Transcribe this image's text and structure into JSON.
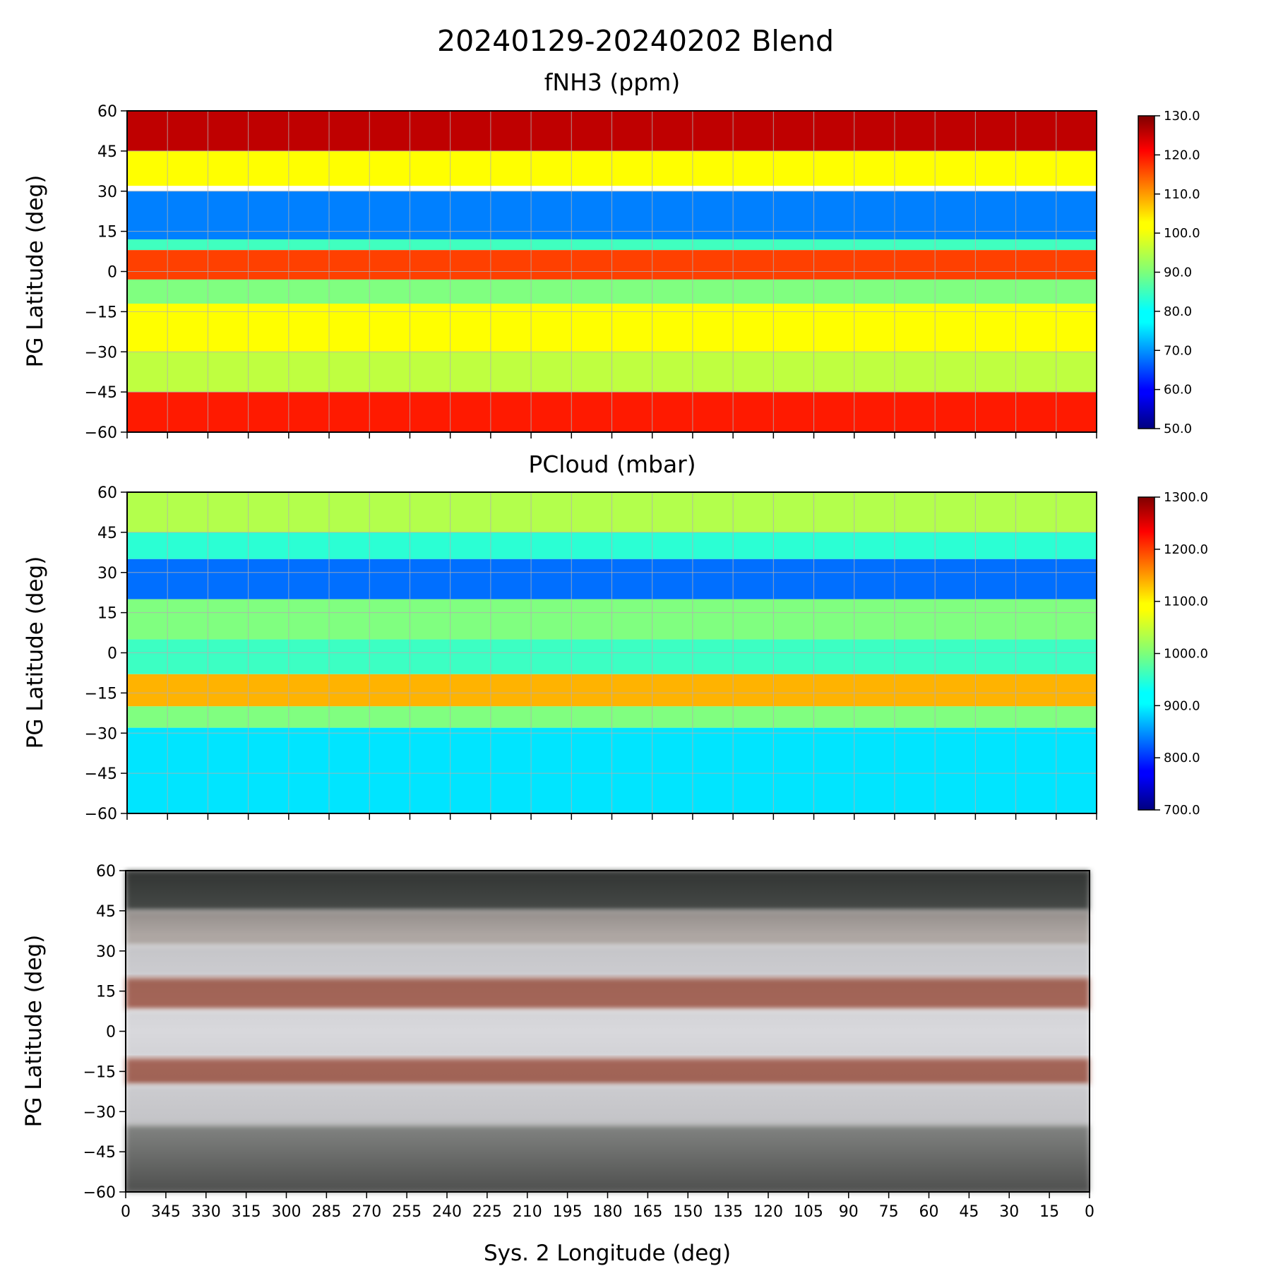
{
  "figure": {
    "suptitle": "20240129-20240202 Blend",
    "xlabel": "Sys. 2 Longitude (deg)"
  },
  "chart_data": [
    {
      "type": "heatmap",
      "title": "fNH3 (ppm)",
      "ylabel": "PG Latitude (deg)",
      "yticks": [
        60,
        45,
        30,
        15,
        0,
        -15,
        -30,
        -45,
        -60
      ],
      "ylim": [
        -60,
        60
      ],
      "xlim": [
        360,
        0
      ],
      "x_grid_every": 15,
      "grid": true,
      "colormap": "jet",
      "colorbar": {
        "range": [
          50,
          130
        ],
        "ticks": [
          "130.0",
          "120.0",
          "110.0",
          "100.0",
          "90.0",
          "80.0",
          "70.0",
          "60.0",
          "50.0"
        ]
      },
      "bands": [
        {
          "lat": [
            45,
            60
          ],
          "value": 125
        },
        {
          "lat": [
            32,
            45
          ],
          "value": 100
        },
        {
          "lat": [
            12,
            30
          ],
          "value": 70
        },
        {
          "lat": [
            8,
            12
          ],
          "value": 85
        },
        {
          "lat": [
            -3,
            8
          ],
          "value": 115
        },
        {
          "lat": [
            -12,
            -3
          ],
          "value": 90
        },
        {
          "lat": [
            -30,
            -12
          ],
          "value": 100
        },
        {
          "lat": [
            -45,
            -30
          ],
          "value": 95
        },
        {
          "lat": [
            -60,
            -45
          ],
          "value": 118
        }
      ]
    },
    {
      "type": "heatmap",
      "title": "PCloud (mbar)",
      "ylabel": "PG Latitude (deg)",
      "yticks": [
        60,
        45,
        30,
        15,
        0,
        -15,
        -30,
        -45,
        -60
      ],
      "ylim": [
        -60,
        60
      ],
      "xlim": [
        360,
        0
      ],
      "x_grid_every": 15,
      "grid": true,
      "colormap": "jet",
      "colorbar": {
        "range": [
          700,
          1300
        ],
        "ticks": [
          "1300.0",
          "1200.0",
          "1100.0",
          "1000.0",
          "900.0",
          "800.0",
          "700.0"
        ]
      },
      "bands": [
        {
          "lat": [
            45,
            60
          ],
          "value": 1030
        },
        {
          "lat": [
            35,
            45
          ],
          "value": 950
        },
        {
          "lat": [
            20,
            35
          ],
          "value": 840
        },
        {
          "lat": [
            5,
            20
          ],
          "value": 1000
        },
        {
          "lat": [
            -8,
            5
          ],
          "value": 960
        },
        {
          "lat": [
            -20,
            -8
          ],
          "value": 1120
        },
        {
          "lat": [
            -28,
            -20
          ],
          "value": 1000
        },
        {
          "lat": [
            -60,
            -28
          ],
          "value": 910
        }
      ]
    },
    {
      "type": "image",
      "ylabel": "PG Latitude (deg)",
      "yticks": [
        60,
        45,
        30,
        15,
        0,
        -15,
        -30,
        -45,
        -60
      ],
      "ylim": [
        -60,
        60
      ],
      "xlim": [
        360,
        0
      ],
      "xticks": [
        "0",
        "345",
        "330",
        "315",
        "300",
        "285",
        "270",
        "255",
        "240",
        "225",
        "210",
        "195",
        "180",
        "165",
        "150",
        "135",
        "120",
        "105",
        "90",
        "75",
        "60",
        "45",
        "30",
        "15",
        "0"
      ],
      "belt_colors": {
        "zone": "#d8d8dc",
        "belt": "#a8685a",
        "polar": "#5a5f5c"
      }
    }
  ]
}
